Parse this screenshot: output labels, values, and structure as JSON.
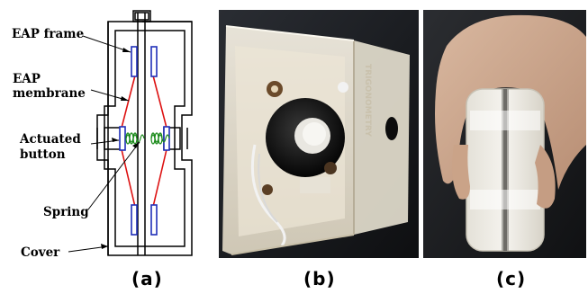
{
  "labels": {
    "eap_frame": "EAP frame",
    "eap_line1": "EAP",
    "eap_line2": "membrane",
    "actuated_line1": "Actuated",
    "actuated_line2": "button",
    "spring": "Spring",
    "cover": "Cover"
  },
  "captions": {
    "a": "(a)",
    "b": "(b)",
    "c": "(c)"
  },
  "photo_b": {
    "side_text": "TRIGONOMETRY"
  },
  "colors": {
    "membrane": "#dd1111",
    "frame_blue": "#1f2fb8",
    "spring": "#1a8a1a"
  }
}
